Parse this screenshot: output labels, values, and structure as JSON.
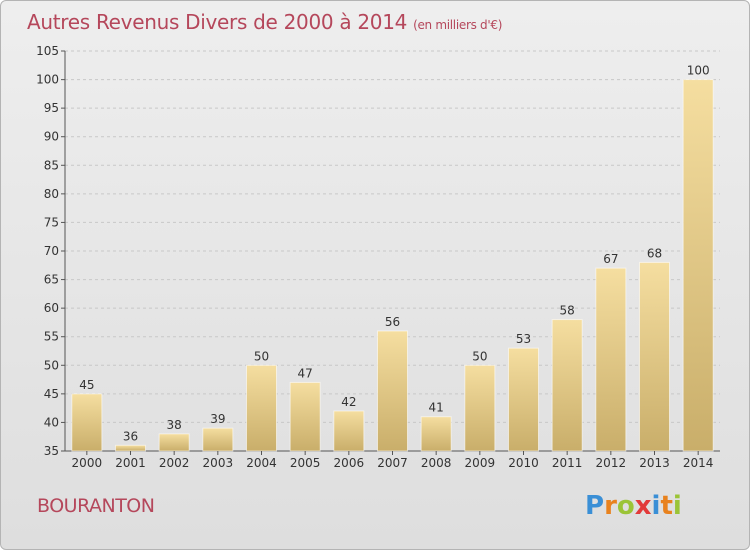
{
  "title": "Autres Revenus Divers de 2000 à 2014",
  "unit": "(en milliers d'€)",
  "city": "BOURANTON",
  "logo": "Proxiti",
  "colors": {
    "title": "#b5475b",
    "bar_light": "#f5dea0",
    "bar_dark": "#c9ae6a",
    "grid": "#c8c8c8"
  },
  "chart_data": {
    "type": "bar",
    "categories": [
      "2000",
      "2001",
      "2002",
      "2003",
      "2004",
      "2005",
      "2006",
      "2007",
      "2008",
      "2009",
      "2010",
      "2011",
      "2012",
      "2013",
      "2014"
    ],
    "values": [
      45,
      36,
      38,
      39,
      50,
      47,
      42,
      56,
      41,
      50,
      53,
      58,
      67,
      68,
      100
    ],
    "ylim": [
      35,
      105
    ],
    "yticks": [
      35,
      40,
      45,
      50,
      55,
      60,
      65,
      70,
      75,
      80,
      85,
      90,
      95,
      100,
      105
    ],
    "grid": true,
    "xlabel": "",
    "ylabel": ""
  }
}
